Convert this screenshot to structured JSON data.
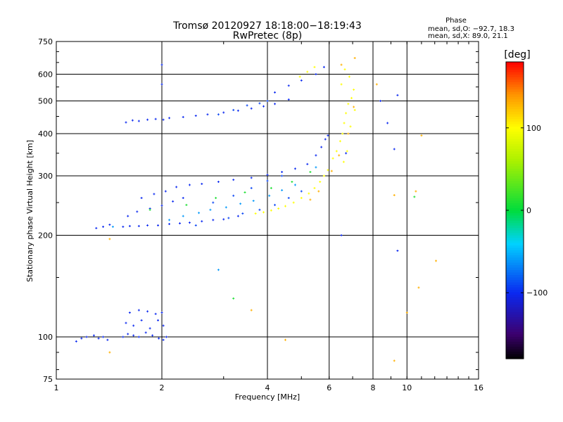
{
  "chart_data": {
    "type": "scatter",
    "title": "Tromsø 20120927 18:18:00−18:19:43",
    "subtitle": "RwPretec (8p)",
    "xlabel": "Frequency [MHz]",
    "ylabel": "Stationary phase Virtual Height [km]",
    "x_scale": "log",
    "y_scale": "log",
    "xlim": [
      1,
      16
    ],
    "ylim": [
      75,
      750
    ],
    "grid": true,
    "x_ticks": [
      1,
      2,
      4,
      6,
      8,
      10,
      16
    ],
    "x_tick_labels": [
      "1",
      "2",
      "4",
      "6",
      "8",
      "10",
      "16"
    ],
    "y_ticks": [
      75,
      100,
      200,
      300,
      400,
      500,
      600,
      750
    ],
    "y_tick_labels": [
      "75",
      "100",
      "200",
      "300",
      "400",
      "500",
      "600",
      "750"
    ],
    "stats": {
      "title": "Phase",
      "line1": "mean, sd,O: −92.7, 18.3",
      "line2": "mean, sd,X:  89.0, 21.1"
    },
    "colorbar": {
      "label": "[deg]",
      "range": [
        -180,
        180
      ],
      "ticks": [
        100,
        0,
        -100
      ],
      "tick_labels": [
        "100",
        "0",
        "−100"
      ]
    },
    "series": [
      {
        "phase": -100,
        "points": [
          [
            1.14,
            97
          ],
          [
            1.18,
            99
          ],
          [
            1.22,
            100
          ],
          [
            1.28,
            101
          ],
          [
            1.32,
            99
          ],
          [
            1.36,
            100
          ],
          [
            1.4,
            98
          ],
          [
            1.55,
            100
          ],
          [
            1.6,
            102
          ],
          [
            1.66,
            101
          ],
          [
            1.72,
            100
          ],
          [
            1.8,
            103
          ],
          [
            1.88,
            101
          ],
          [
            1.96,
            99
          ],
          [
            2.02,
            98
          ],
          [
            2.06,
            100
          ],
          [
            1.58,
            110
          ],
          [
            1.66,
            108
          ],
          [
            1.75,
            112
          ],
          [
            1.85,
            106
          ],
          [
            1.95,
            112
          ],
          [
            2.02,
            108
          ],
          [
            1.62,
            118
          ],
          [
            1.72,
            120
          ],
          [
            1.82,
            119
          ],
          [
            1.92,
            117
          ],
          [
            2.0,
            118
          ],
          [
            1.3,
            210
          ],
          [
            1.36,
            212
          ],
          [
            1.42,
            215
          ],
          [
            1.55,
            212
          ],
          [
            1.62,
            213
          ],
          [
            1.72,
            213
          ],
          [
            1.82,
            214
          ],
          [
            1.95,
            214
          ],
          [
            2.1,
            216
          ],
          [
            2.25,
            217
          ],
          [
            2.4,
            218
          ],
          [
            2.6,
            220
          ],
          [
            2.8,
            222
          ],
          [
            3.0,
            223
          ],
          [
            3.3,
            228
          ],
          [
            1.6,
            228
          ],
          [
            1.7,
            235
          ],
          [
            1.85,
            240
          ],
          [
            2.0,
            245
          ],
          [
            2.15,
            252
          ],
          [
            2.3,
            258
          ],
          [
            1.75,
            258
          ],
          [
            1.9,
            265
          ],
          [
            2.05,
            270
          ],
          [
            2.2,
            278
          ],
          [
            2.4,
            282
          ],
          [
            2.6,
            284
          ],
          [
            2.9,
            288
          ],
          [
            3.2,
            292
          ],
          [
            3.6,
            296
          ],
          [
            4.0,
            302
          ],
          [
            4.4,
            308
          ],
          [
            4.8,
            315
          ],
          [
            5.2,
            325
          ],
          [
            5.5,
            345
          ],
          [
            5.7,
            365
          ],
          [
            5.85,
            385
          ],
          [
            5.95,
            395
          ],
          [
            1.58,
            432
          ],
          [
            1.65,
            438
          ],
          [
            1.72,
            436
          ],
          [
            1.82,
            440
          ],
          [
            1.92,
            442
          ],
          [
            2.02,
            440
          ],
          [
            2.1,
            445
          ],
          [
            2.3,
            448
          ],
          [
            2.5,
            452
          ],
          [
            2.7,
            456
          ],
          [
            3.0,
            462
          ],
          [
            3.3,
            468
          ],
          [
            3.6,
            475
          ],
          [
            3.9,
            482
          ],
          [
            4.2,
            490
          ],
          [
            4.6,
            505
          ],
          [
            4.2,
            530
          ],
          [
            4.6,
            555
          ],
          [
            5.0,
            575
          ],
          [
            5.5,
            600
          ],
          [
            5.8,
            630
          ],
          [
            2.0,
            640
          ],
          [
            2.0,
            560
          ],
          [
            6.5,
            200
          ],
          [
            6.7,
            350
          ],
          [
            8.4,
            500
          ],
          [
            8.8,
            430
          ],
          [
            9.2,
            360
          ],
          [
            9.4,
            180
          ],
          [
            9.4,
            520
          ]
        ]
      },
      {
        "phase": -90,
        "points": [
          [
            2.5,
            214
          ],
          [
            3.1,
            225
          ],
          [
            3.4,
            232
          ],
          [
            3.8,
            238
          ],
          [
            4.2,
            246
          ],
          [
            4.6,
            258
          ],
          [
            5.0,
            270
          ],
          [
            2.8,
            250
          ],
          [
            3.2,
            262
          ],
          [
            3.6,
            276
          ],
          [
            4.0,
            290
          ],
          [
            4.4,
            300
          ],
          [
            3.5,
            485
          ],
          [
            3.8,
            492
          ],
          [
            4.0,
            500
          ],
          [
            2.9,
            456
          ],
          [
            3.2,
            470
          ]
        ]
      },
      {
        "phase": -60,
        "points": [
          [
            2.1,
            222
          ],
          [
            2.3,
            228
          ],
          [
            2.55,
            233
          ],
          [
            2.75,
            238
          ],
          [
            3.05,
            242
          ],
          [
            3.35,
            248
          ],
          [
            3.65,
            253
          ],
          [
            4.05,
            262
          ],
          [
            4.4,
            272
          ],
          [
            4.8,
            282
          ],
          [
            2.9,
            158
          ],
          [
            1.45,
            212
          ],
          [
            5.5,
            318
          ]
        ]
      },
      {
        "phase": 10,
        "points": [
          [
            1.85,
            238
          ],
          [
            2.35,
            246
          ],
          [
            2.85,
            258
          ],
          [
            3.45,
            268
          ],
          [
            4.1,
            276
          ],
          [
            4.7,
            288
          ],
          [
            3.2,
            130
          ],
          [
            5.3,
            308
          ],
          [
            10.5,
            260
          ]
        ]
      },
      {
        "phase": 100,
        "points": [
          [
            3.7,
            232
          ],
          [
            3.9,
            234
          ],
          [
            4.1,
            237
          ],
          [
            4.3,
            240
          ],
          [
            4.5,
            244
          ],
          [
            4.75,
            250
          ],
          [
            5.0,
            258
          ],
          [
            5.25,
            266
          ],
          [
            5.45,
            276
          ],
          [
            5.65,
            288
          ],
          [
            5.8,
            300
          ],
          [
            5.95,
            312
          ],
          [
            6.15,
            338
          ],
          [
            6.3,
            355
          ],
          [
            6.45,
            380
          ],
          [
            6.55,
            400
          ],
          [
            6.62,
            430
          ],
          [
            6.7,
            460
          ],
          [
            6.8,
            490
          ],
          [
            6.95,
            510
          ],
          [
            7.05,
            540
          ],
          [
            6.85,
            590
          ],
          [
            6.65,
            620
          ],
          [
            6.5,
            560
          ],
          [
            6.6,
            330
          ],
          [
            6.75,
            355
          ],
          [
            6.9,
            420
          ],
          [
            7.1,
            470
          ],
          [
            4.95,
            590
          ],
          [
            5.2,
            610
          ],
          [
            5.45,
            630
          ]
        ]
      },
      {
        "phase": 130,
        "points": [
          [
            5.3,
            255
          ],
          [
            5.6,
            270
          ],
          [
            6.1,
            310
          ],
          [
            6.4,
            345
          ],
          [
            6.8,
            400
          ],
          [
            7.05,
            480
          ],
          [
            6.5,
            640
          ],
          [
            7.1,
            670
          ],
          [
            8.2,
            560
          ],
          [
            10.6,
            270
          ],
          [
            10.8,
            140
          ],
          [
            12.1,
            168
          ],
          [
            3.6,
            120
          ],
          [
            1.42,
            195
          ],
          [
            1.42,
            90
          ],
          [
            9.2,
            85
          ],
          [
            9.2,
            263
          ],
          [
            10.0,
            118
          ],
          [
            4.5,
            98
          ],
          [
            11.0,
            395
          ]
        ]
      }
    ]
  }
}
